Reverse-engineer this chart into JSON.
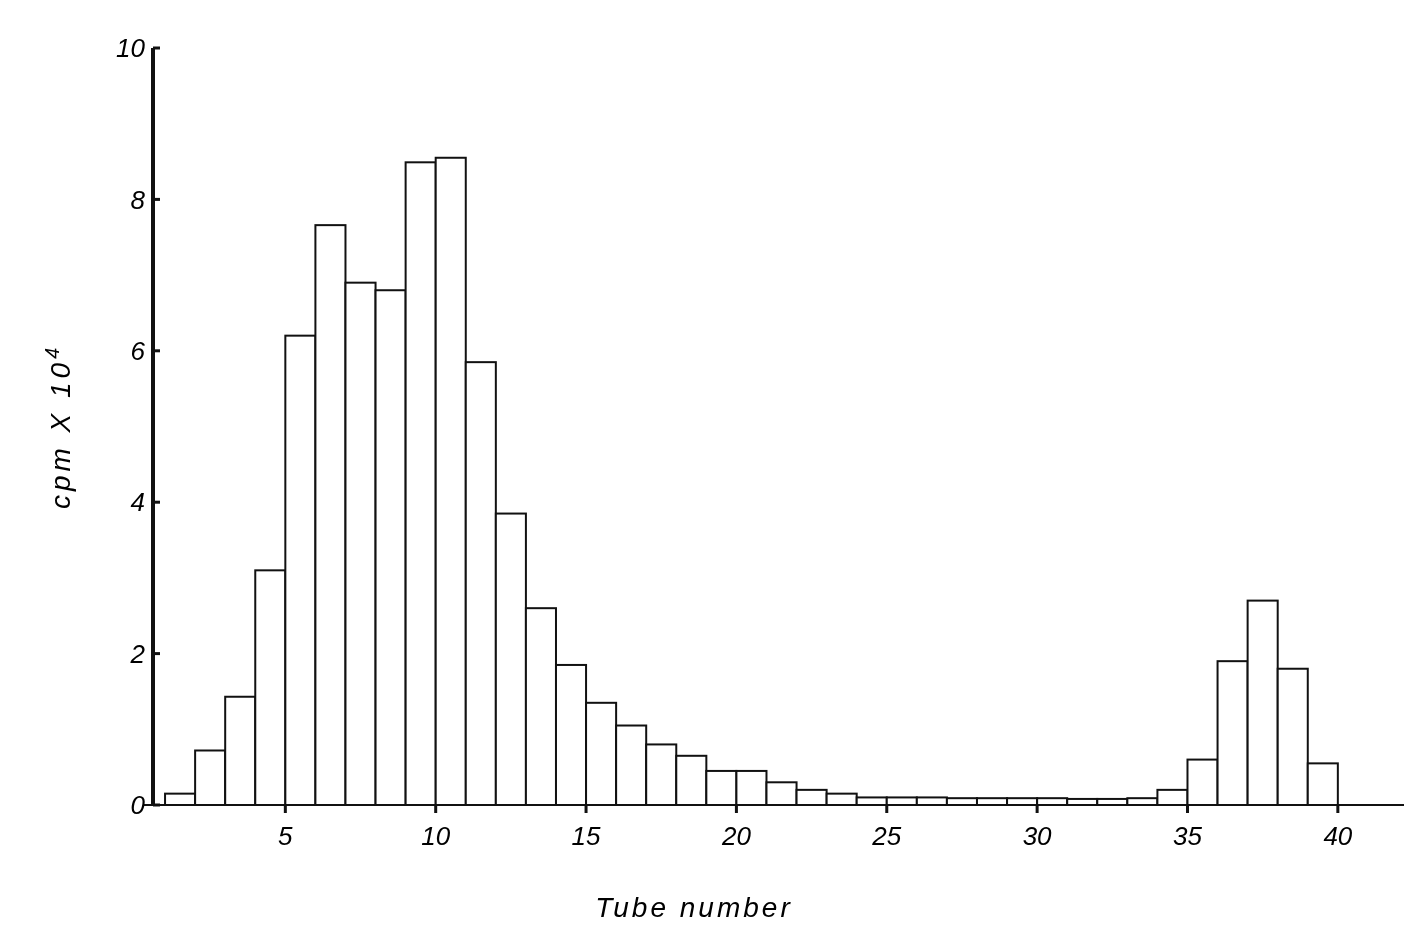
{
  "chart_data": {
    "type": "histogram",
    "xlabel": "Tube number",
    "ylabel": "cpm X 10$^{4}$",
    "bins": [
      1,
      2,
      3,
      4,
      5,
      6,
      7,
      8,
      9,
      10,
      11,
      12,
      13,
      14,
      15,
      16,
      17,
      18,
      19,
      20,
      21,
      22,
      23,
      24,
      25,
      26,
      27,
      28,
      29,
      30,
      31,
      32,
      33,
      34,
      35,
      36,
      37,
      38,
      39,
      40
    ],
    "values": [
      0.15,
      0.72,
      1.43,
      3.1,
      6.2,
      7.66,
      6.9,
      6.8,
      8.49,
      8.55,
      5.85,
      3.85,
      2.6,
      1.85,
      1.35,
      1.05,
      0.8,
      0.65,
      0.45,
      0.45,
      0.3,
      0.2,
      0.15,
      0.1,
      0.1,
      0.1,
      0.09,
      0.09,
      0.09,
      0.09,
      0.08,
      0.08,
      0.09,
      0.2,
      0.6,
      1.9,
      2.7,
      1.8,
      0.55
    ],
    "color": "#ffffff",
    "xlim": [
      0.3,
      42.2
    ],
    "xticks": [
      5,
      10,
      15,
      20,
      25,
      30,
      35,
      40
    ],
    "ylim": [
      0,
      10
    ],
    "yticks": [
      0,
      2,
      4,
      6,
      8,
      10
    ]
  }
}
